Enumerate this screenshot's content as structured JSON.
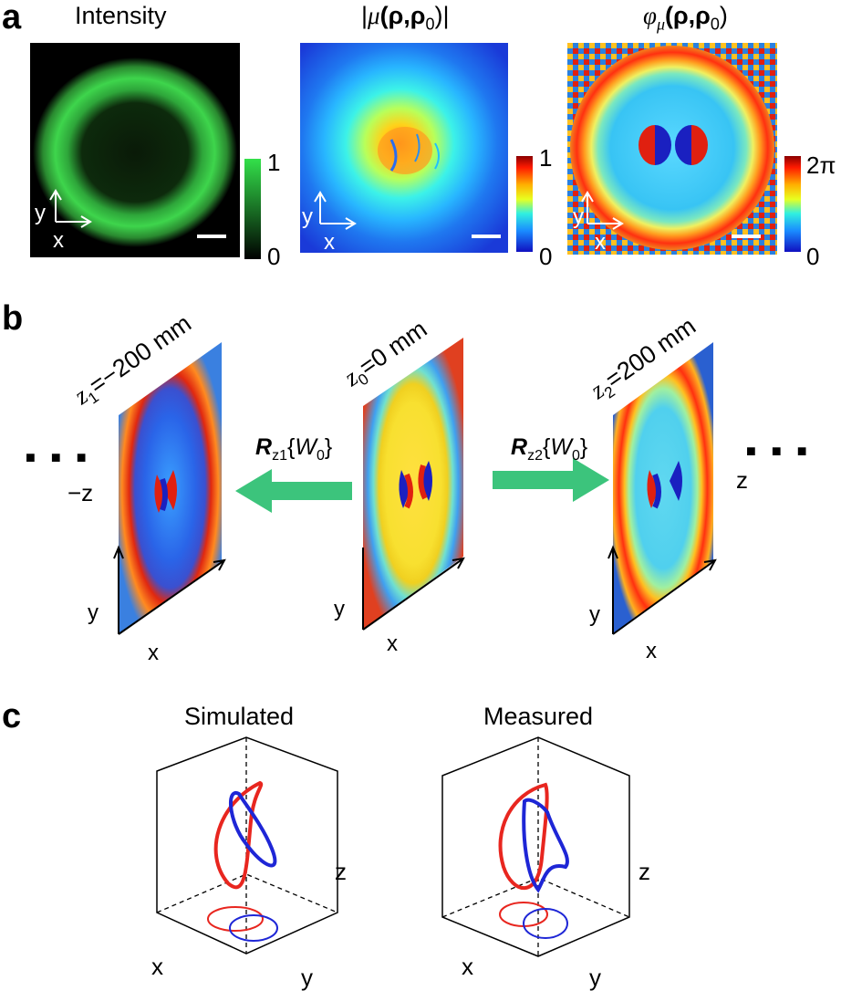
{
  "panels": {
    "a": {
      "label": "a",
      "intensity": {
        "title": "Intensity",
        "cb_max": "1",
        "cb_min": "0",
        "axis_y": "y",
        "axis_x": "x"
      },
      "mu_abs": {
        "title_pre": "|",
        "title_mu": "μ",
        "title_args": "(ρ,ρ",
        "title_sub": "0",
        "title_post": ")|",
        "cb_max": "1",
        "cb_min": "0",
        "axis_y": "y",
        "axis_x": "x"
      },
      "mu_phase": {
        "title_phi": "φ",
        "title_sub": "μ",
        "title_args": "(ρ,ρ",
        "title_sub2": "0",
        "title_post": ")",
        "cb_max": "2π",
        "cb_min": "0",
        "axis_y": "y",
        "axis_x": "x"
      }
    },
    "b": {
      "label": "b",
      "left": {
        "z_pre": "z",
        "z_sub": "1",
        "z_post": "=−200 mm",
        "dir_label": "−z",
        "axis_x": "x",
        "axis_y": "y"
      },
      "center": {
        "z_pre": "z",
        "z_sub": "0",
        "z_post": "=0 mm",
        "axis_x": "x",
        "axis_y": "y"
      },
      "right": {
        "z_pre": "z",
        "z_sub": "2",
        "z_post": "=200 mm",
        "dir_label": "z",
        "axis_x": "x",
        "axis_y": "y"
      },
      "op_left": {
        "R": "R",
        "R_sub": "z1",
        "open": "{",
        "W": "W",
        "W_sub": "0",
        "close": "}"
      },
      "op_right": {
        "R": "R",
        "R_sub": "z2",
        "open": "{",
        "W": "W",
        "W_sub": "0",
        "close": "}"
      },
      "ellipsis": "■ ■ ■"
    },
    "c": {
      "label": "c",
      "simulated": {
        "title": "Simulated",
        "axis_x": "x",
        "axis_y": "y",
        "axis_z": "z"
      },
      "measured": {
        "title": "Measured",
        "axis_x": "x",
        "axis_y": "y",
        "axis_z": "z"
      }
    }
  },
  "colors": {
    "green": "#33d94a",
    "red": "#e8261f",
    "blue": "#1e26d6",
    "arrow_green": "#3cc47c"
  }
}
